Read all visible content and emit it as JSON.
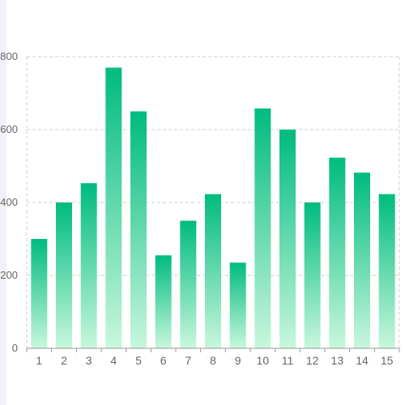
{
  "chart_data": {
    "type": "bar",
    "categories": [
      "1",
      "2",
      "3",
      "4",
      "5",
      "6",
      "7",
      "8",
      "9",
      "10",
      "11",
      "12",
      "13",
      "14",
      "15"
    ],
    "values": [
      300,
      400,
      453,
      770,
      650,
      255,
      350,
      423,
      235,
      658,
      600,
      400,
      523,
      482,
      423
    ],
    "yticks": [
      0,
      200,
      400,
      600,
      800
    ],
    "ytick_labels": [
      "0",
      "200",
      "400",
      "600",
      "800"
    ],
    "ylim": [
      0,
      800
    ],
    "grid": true,
    "colors": {
      "bar_top": "#00bb7f",
      "bar_bottom": "#c8f7dc",
      "grid": "#cccccc"
    }
  }
}
